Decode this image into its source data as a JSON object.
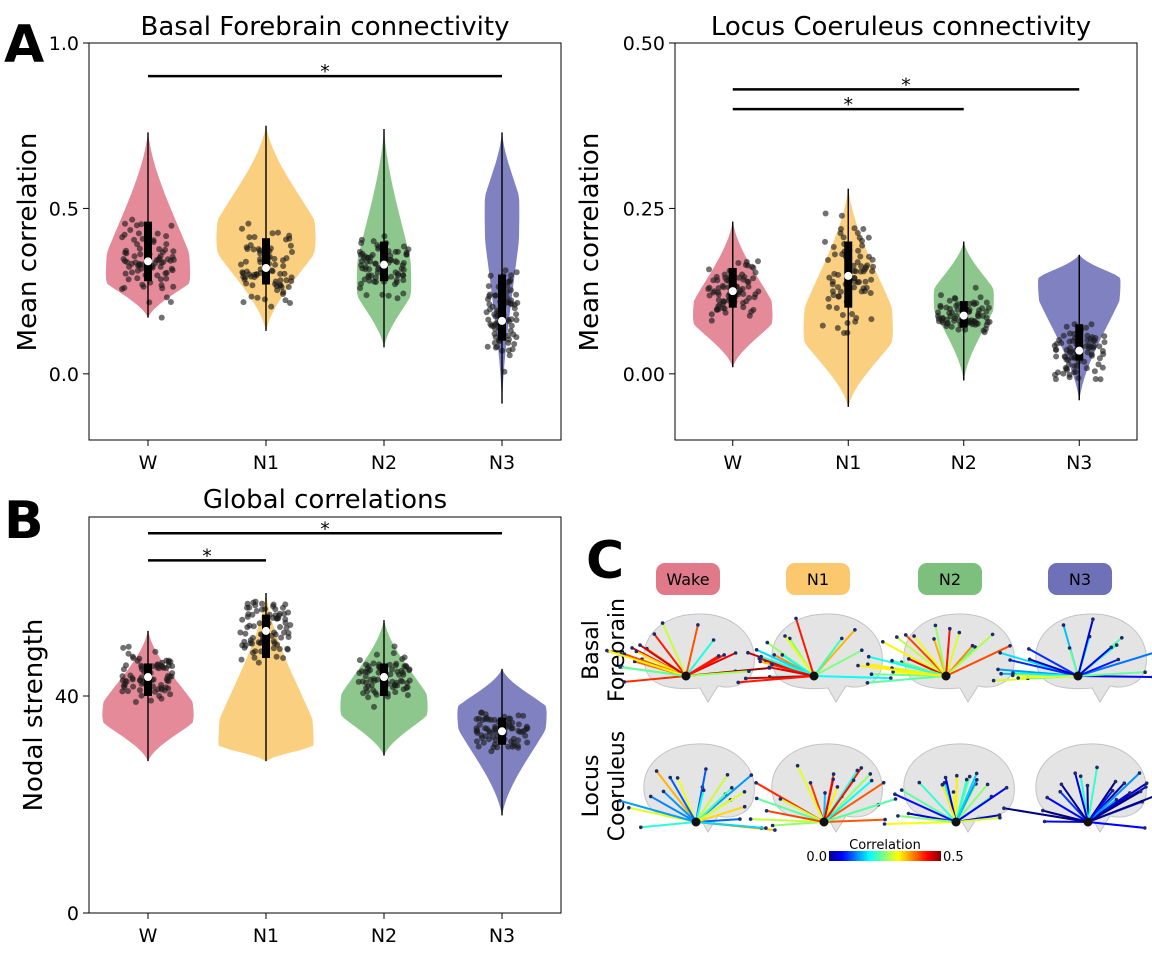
{
  "panel_letters": {
    "a": "A",
    "b": "B",
    "c": "C"
  },
  "categories": [
    "W",
    "N1",
    "N2",
    "N3"
  ],
  "colors": {
    "W": "#e07a8b",
    "N1": "#fbc86e",
    "N2": "#7dbf7d",
    "N3": "#6e70b8"
  },
  "chart_data": [
    {
      "type": "violin",
      "title": "Basal Forebrain connectivity",
      "ylabel": "Mean correlation",
      "xlabel": "",
      "categories": [
        "W",
        "N1",
        "N2",
        "N3"
      ],
      "ylim": [
        -0.2,
        1.0
      ],
      "yticks": [
        0.0,
        0.5,
        1.0
      ],
      "ytick_labels": [
        "0.0",
        "0.5",
        "1.0"
      ],
      "medians": [
        0.34,
        0.32,
        0.33,
        0.16
      ],
      "q1": [
        0.28,
        0.27,
        0.28,
        0.1
      ],
      "q3": [
        0.46,
        0.41,
        0.4,
        0.3
      ],
      "ranges": [
        [
          0.17,
          0.73
        ],
        [
          0.13,
          0.75
        ],
        [
          0.08,
          0.74
        ],
        [
          -0.09,
          0.73
        ]
      ],
      "significance": [
        {
          "from": "W",
          "to": "N3",
          "y": 0.9,
          "label": "*"
        }
      ]
    },
    {
      "type": "violin",
      "title": "Locus Coeruleus connectivity",
      "ylabel": "Mean correlation",
      "xlabel": "",
      "categories": [
        "W",
        "N1",
        "N2",
        "N3"
      ],
      "ylim": [
        -0.1,
        0.5
      ],
      "yticks": [
        0.0,
        0.25,
        0.5
      ],
      "ytick_labels": [
        "0.00",
        "0.25",
        "0.50"
      ],
      "medians": [
        0.125,
        0.148,
        0.088,
        0.035
      ],
      "q1": [
        0.1,
        0.1,
        0.07,
        0.02
      ],
      "q3": [
        0.16,
        0.2,
        0.11,
        0.075
      ],
      "ranges": [
        [
          0.01,
          0.23
        ],
        [
          -0.05,
          0.28
        ],
        [
          -0.01,
          0.2
        ],
        [
          -0.04,
          0.18
        ]
      ],
      "significance": [
        {
          "from": "W",
          "to": "N3",
          "y": 0.43,
          "label": "*"
        },
        {
          "from": "W",
          "to": "N2",
          "y": 0.4,
          "label": "*"
        }
      ]
    },
    {
      "type": "violin",
      "title": "Global correlations",
      "ylabel": "Nodal strength",
      "xlabel": "",
      "categories": [
        "W",
        "N1",
        "N2",
        "N3"
      ],
      "ylim": [
        0,
        73
      ],
      "yticks": [
        0,
        40
      ],
      "ytick_labels": [
        "0",
        "40"
      ],
      "medians": [
        43.5,
        52,
        43.5,
        33.5
      ],
      "q1": [
        40,
        47,
        40,
        31
      ],
      "q3": [
        46,
        55,
        46,
        36
      ],
      "ranges": [
        [
          28,
          52
        ],
        [
          28,
          59
        ],
        [
          29,
          54
        ],
        [
          18,
          45
        ]
      ],
      "significance": [
        {
          "from": "W",
          "to": "N3",
          "y": 70,
          "label": "*"
        },
        {
          "from": "W",
          "to": "N1",
          "y": 65,
          "label": "*"
        }
      ]
    }
  ],
  "panel_c": {
    "stage_labels": [
      "Wake",
      "N1",
      "N2",
      "N3"
    ],
    "row_labels": [
      [
        "Basal",
        "Forebrain"
      ],
      [
        "Locus",
        "Coeruleus"
      ]
    ],
    "colorbar": {
      "title": "Correlation",
      "min_label": "0.0",
      "max_label": "0.5",
      "min": 0.0,
      "max": 0.5
    }
  }
}
